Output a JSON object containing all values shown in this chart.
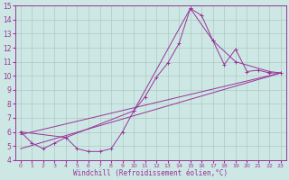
{
  "xlabel": "Windchill (Refroidissement éolien,°C)",
  "background_color": "#cde8e4",
  "grid_color": "#b0c8c4",
  "line_color": "#993399",
  "xlim": [
    -0.5,
    23.5
  ],
  "ylim": [
    4,
    15
  ],
  "xticks": [
    0,
    1,
    2,
    3,
    4,
    5,
    6,
    7,
    8,
    9,
    10,
    11,
    12,
    13,
    14,
    15,
    16,
    17,
    18,
    19,
    20,
    21,
    22,
    23
  ],
  "yticks": [
    4,
    5,
    6,
    7,
    8,
    9,
    10,
    11,
    12,
    13,
    14,
    15
  ],
  "line1_x": [
    0,
    1,
    2,
    3,
    4,
    5,
    6,
    7,
    8,
    9,
    10,
    11,
    12,
    13,
    14,
    15,
    16,
    17,
    18,
    19,
    20,
    21,
    22,
    23
  ],
  "line1_y": [
    6.0,
    5.2,
    4.8,
    5.2,
    5.6,
    4.8,
    4.6,
    4.6,
    4.8,
    6.0,
    7.5,
    8.5,
    9.9,
    10.9,
    12.3,
    14.8,
    14.3,
    12.5,
    10.8,
    11.9,
    10.3,
    10.4,
    10.2,
    10.2
  ],
  "line2_x": [
    0,
    4,
    10,
    15,
    17,
    19,
    22,
    23
  ],
  "line2_y": [
    6.0,
    5.6,
    7.5,
    14.8,
    12.5,
    11.0,
    10.3,
    10.2
  ],
  "line3_x": [
    0,
    23
  ],
  "line3_y": [
    5.8,
    10.2
  ],
  "line4_x": [
    0,
    23
  ],
  "line4_y": [
    4.8,
    10.2
  ]
}
